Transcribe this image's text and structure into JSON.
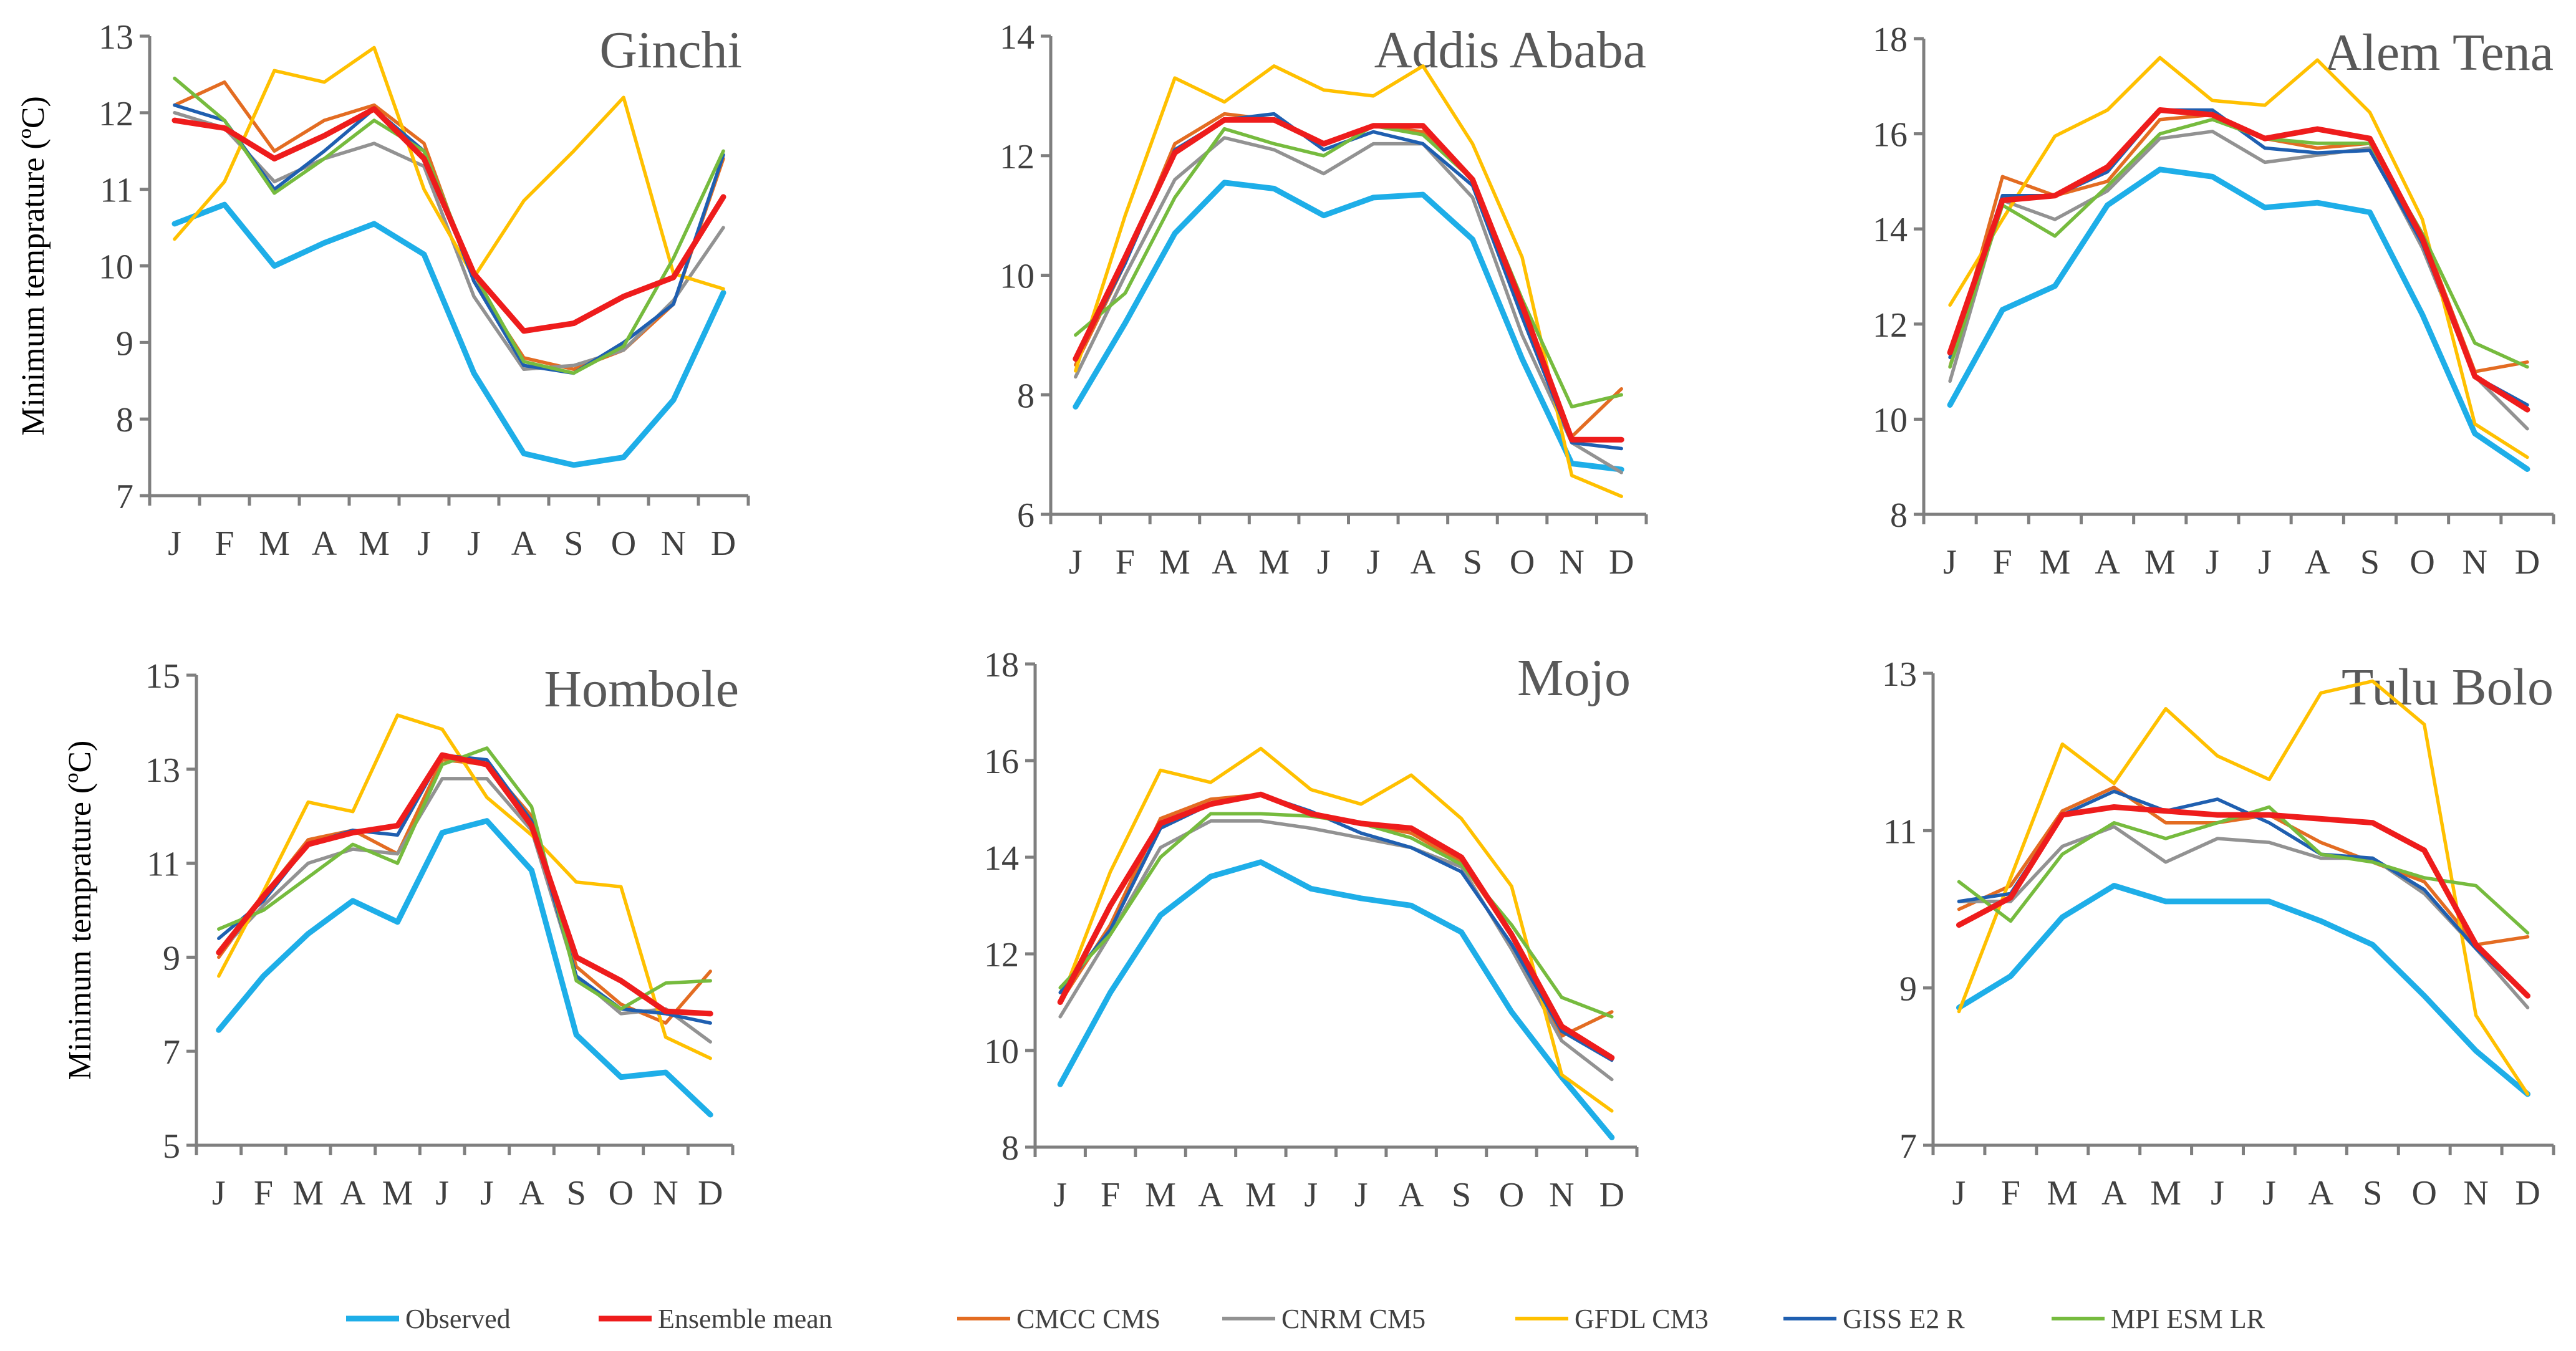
{
  "colors": {
    "Observed": "#1eaee8",
    "Ensemble mean": "#ee1c1c",
    "CMCC CMS": "#e36c22",
    "CNRM CM5": "#929292",
    "GFDL CM3": "#ffc000",
    "GISS E2 R": "#1f5fb0",
    "MPI ESM LR": "#76bb3e"
  },
  "legend": [
    "Observed",
    "Ensemble mean",
    "CMCC CMS",
    "CNRM CM5",
    "GFDL CM3",
    "GISS E2 R",
    "MPI ESM LR"
  ],
  "chart_data": [
    {
      "type": "line",
      "title": "Ginchi",
      "ylabel": "Minimum temprature (ºC)",
      "categories": [
        "J",
        "F",
        "M",
        "A",
        "M",
        "J",
        "J",
        "A",
        "S",
        "O",
        "N",
        "D"
      ],
      "ylim": [
        7,
        13
      ],
      "yticks": [
        "7",
        "8",
        "9",
        "10",
        "11",
        "12",
        "13"
      ],
      "series": [
        {
          "name": "Observed",
          "values": [
            10.55,
            10.8,
            10.0,
            10.3,
            10.55,
            10.15,
            8.6,
            7.55,
            7.4,
            7.5,
            8.25,
            9.65
          ]
        },
        {
          "name": "CMCC CMS",
          "values": [
            12.1,
            12.4,
            11.5,
            11.9,
            12.1,
            11.6,
            9.8,
            8.8,
            8.65,
            8.9,
            9.5,
            11.4
          ]
        },
        {
          "name": "CNRM CM5",
          "values": [
            12.0,
            11.8,
            11.1,
            11.4,
            11.6,
            11.3,
            9.6,
            8.65,
            8.7,
            8.9,
            9.55,
            10.5
          ]
        },
        {
          "name": "GFDL CM3",
          "values": [
            10.35,
            11.1,
            12.55,
            12.4,
            12.85,
            11.0,
            9.85,
            10.85,
            11.5,
            12.2,
            9.9,
            9.7
          ]
        },
        {
          "name": "GISS E2 R",
          "values": [
            12.1,
            11.9,
            11.0,
            11.5,
            12.05,
            11.5,
            9.8,
            8.7,
            8.6,
            9.0,
            9.5,
            11.45
          ]
        },
        {
          "name": "MPI ESM LR",
          "values": [
            12.45,
            11.9,
            10.95,
            11.4,
            11.9,
            11.5,
            9.9,
            8.75,
            8.6,
            8.95,
            10.1,
            11.5
          ]
        },
        {
          "name": "Ensemble mean",
          "values": [
            11.9,
            11.8,
            11.4,
            11.7,
            12.05,
            11.4,
            9.9,
            9.15,
            9.25,
            9.6,
            9.85,
            10.9
          ]
        }
      ]
    },
    {
      "type": "line",
      "title": "Addis Ababa",
      "ylabel": "",
      "categories": [
        "J",
        "F",
        "M",
        "A",
        "M",
        "J",
        "J",
        "A",
        "S",
        "O",
        "N",
        "D"
      ],
      "ylim": [
        6,
        14
      ],
      "yticks": [
        "6",
        "8",
        "10",
        "12",
        "14"
      ],
      "series": [
        {
          "name": "Observed",
          "values": [
            7.8,
            9.2,
            10.7,
            11.55,
            11.45,
            11.0,
            11.3,
            11.35,
            10.6,
            8.6,
            6.85,
            6.75
          ]
        },
        {
          "name": "CMCC CMS",
          "values": [
            8.5,
            10.2,
            12.2,
            12.7,
            12.6,
            12.2,
            12.5,
            12.4,
            11.6,
            9.5,
            7.3,
            8.1
          ]
        },
        {
          "name": "CNRM CM5",
          "values": [
            8.3,
            10.0,
            11.6,
            12.3,
            12.1,
            11.7,
            12.2,
            12.2,
            11.3,
            9.0,
            7.2,
            6.7
          ]
        },
        {
          "name": "GFDL CM3",
          "values": [
            8.4,
            11.0,
            13.3,
            12.9,
            13.5,
            13.1,
            13.0,
            13.5,
            12.2,
            10.3,
            6.65,
            6.3
          ]
        },
        {
          "name": "GISS E2 R",
          "values": [
            8.6,
            10.2,
            12.1,
            12.6,
            12.7,
            12.1,
            12.4,
            12.2,
            11.5,
            9.3,
            7.2,
            7.1
          ]
        },
        {
          "name": "MPI ESM LR",
          "values": [
            9.0,
            9.7,
            11.3,
            12.45,
            12.2,
            12.0,
            12.5,
            12.35,
            11.6,
            9.6,
            7.8,
            8.0
          ]
        },
        {
          "name": "Ensemble mean",
          "values": [
            8.6,
            10.3,
            12.05,
            12.6,
            12.6,
            12.2,
            12.5,
            12.5,
            11.6,
            9.5,
            7.25,
            7.25
          ]
        }
      ]
    },
    {
      "type": "line",
      "title": "Alem Tena",
      "ylabel": "",
      "categories": [
        "J",
        "F",
        "M",
        "A",
        "M",
        "J",
        "J",
        "A",
        "S",
        "O",
        "N",
        "D"
      ],
      "ylim": [
        8,
        18
      ],
      "yticks": [
        "8",
        "10",
        "12",
        "14",
        "16",
        "18"
      ],
      "series": [
        {
          "name": "Observed",
          "values": [
            10.3,
            12.3,
            12.8,
            14.5,
            15.25,
            15.1,
            14.45,
            14.55,
            14.35,
            12.2,
            9.7,
            8.95
          ]
        },
        {
          "name": "CMCC CMS",
          "values": [
            11.1,
            15.1,
            14.7,
            15.0,
            16.3,
            16.4,
            15.9,
            15.7,
            15.8,
            13.9,
            11.0,
            11.2
          ]
        },
        {
          "name": "CNRM CM5",
          "values": [
            10.8,
            14.6,
            14.2,
            14.8,
            15.9,
            16.05,
            15.4,
            15.55,
            15.7,
            13.6,
            10.9,
            9.8
          ]
        },
        {
          "name": "GFDL CM3",
          "values": [
            12.4,
            14.2,
            15.95,
            16.5,
            17.6,
            16.7,
            16.6,
            17.55,
            16.45,
            14.2,
            9.9,
            9.2
          ]
        },
        {
          "name": "GISS E2 R",
          "values": [
            11.3,
            14.7,
            14.7,
            15.2,
            16.5,
            16.5,
            15.7,
            15.6,
            15.65,
            13.7,
            10.9,
            10.3
          ]
        },
        {
          "name": "MPI ESM LR",
          "values": [
            11.1,
            14.5,
            13.85,
            14.9,
            16.0,
            16.3,
            15.9,
            15.8,
            15.8,
            13.9,
            11.6,
            11.1
          ]
        },
        {
          "name": "Ensemble mean",
          "values": [
            11.4,
            14.6,
            14.7,
            15.3,
            16.5,
            16.4,
            15.9,
            16.1,
            15.9,
            13.8,
            10.9,
            10.2
          ]
        }
      ]
    },
    {
      "type": "line",
      "title": "Hombole",
      "ylabel": "Minimum temprature (ºC)",
      "categories": [
        "J",
        "F",
        "M",
        "A",
        "M",
        "J",
        "J",
        "A",
        "S",
        "O",
        "N",
        "D"
      ],
      "ylim": [
        5,
        15
      ],
      "yticks": [
        "5",
        "7",
        "9",
        "11",
        "13",
        "15"
      ],
      "series": [
        {
          "name": "Observed",
          "values": [
            7.45,
            8.6,
            9.5,
            10.2,
            9.75,
            11.65,
            11.9,
            10.85,
            7.35,
            6.45,
            6.55,
            5.65
          ]
        },
        {
          "name": "CMCC CMS",
          "values": [
            9.0,
            10.3,
            11.5,
            11.7,
            11.2,
            13.2,
            13.1,
            12.0,
            8.8,
            8.0,
            7.6,
            8.7
          ]
        },
        {
          "name": "CNRM CM5",
          "values": [
            9.1,
            10.1,
            11.0,
            11.3,
            11.2,
            12.8,
            12.8,
            11.7,
            8.6,
            7.8,
            7.9,
            7.2
          ]
        },
        {
          "name": "GFDL CM3",
          "values": [
            8.6,
            10.4,
            12.3,
            12.1,
            14.15,
            13.85,
            12.4,
            11.6,
            10.6,
            10.5,
            7.3,
            6.85
          ]
        },
        {
          "name": "GISS E2 R",
          "values": [
            9.4,
            10.2,
            11.4,
            11.7,
            11.6,
            13.3,
            13.2,
            11.9,
            8.6,
            7.9,
            7.8,
            7.6
          ]
        },
        {
          "name": "MPI ESM LR",
          "values": [
            9.6,
            10.0,
            10.7,
            11.4,
            11.0,
            13.1,
            13.45,
            12.2,
            8.5,
            7.9,
            8.45,
            8.5
          ]
        },
        {
          "name": "Ensemble mean",
          "values": [
            9.1,
            10.3,
            11.4,
            11.65,
            11.8,
            13.3,
            13.1,
            11.8,
            9.0,
            8.5,
            7.85,
            7.8
          ]
        }
      ]
    },
    {
      "type": "line",
      "title": "Mojo",
      "ylabel": "",
      "categories": [
        "J",
        "F",
        "M",
        "A",
        "M",
        "J",
        "J",
        "A",
        "S",
        "O",
        "N",
        "D"
      ],
      "ylim": [
        8,
        18
      ],
      "yticks": [
        "8",
        "10",
        "12",
        "14",
        "16",
        "18"
      ],
      "series": [
        {
          "name": "Observed",
          "values": [
            9.3,
            11.2,
            12.8,
            13.6,
            13.9,
            13.35,
            13.15,
            13.0,
            12.45,
            10.8,
            9.45,
            8.2
          ]
        },
        {
          "name": "CMCC CMS",
          "values": [
            11.0,
            12.6,
            14.8,
            15.2,
            15.3,
            14.9,
            14.7,
            14.5,
            13.9,
            12.4,
            10.3,
            10.8
          ]
        },
        {
          "name": "CNRM CM5",
          "values": [
            10.7,
            12.4,
            14.2,
            14.75,
            14.75,
            14.6,
            14.4,
            14.2,
            13.8,
            12.1,
            10.2,
            9.4
          ]
        },
        {
          "name": "GFDL CM3",
          "values": [
            11.0,
            13.7,
            15.8,
            15.55,
            16.25,
            15.4,
            15.1,
            15.7,
            14.8,
            13.4,
            9.5,
            8.75
          ]
        },
        {
          "name": "GISS E2 R",
          "values": [
            11.2,
            12.5,
            14.6,
            15.1,
            15.3,
            14.95,
            14.5,
            14.2,
            13.7,
            12.2,
            10.4,
            9.8
          ]
        },
        {
          "name": "MPI ESM LR",
          "values": [
            11.3,
            12.4,
            14.0,
            14.9,
            14.9,
            14.85,
            14.7,
            14.4,
            13.85,
            12.6,
            11.1,
            10.7
          ]
        },
        {
          "name": "Ensemble mean",
          "values": [
            11.0,
            13.0,
            14.7,
            15.1,
            15.3,
            14.9,
            14.7,
            14.6,
            14.0,
            12.4,
            10.5,
            9.85
          ]
        }
      ]
    },
    {
      "type": "line",
      "title": "Tulu Bolo",
      "ylabel": "",
      "categories": [
        "J",
        "F",
        "M",
        "A",
        "M",
        "J",
        "J",
        "A",
        "S",
        "O",
        "N",
        "D"
      ],
      "ylim": [
        7,
        13
      ],
      "yticks": [
        "7",
        "9",
        "11",
        "13"
      ],
      "series": [
        {
          "name": "Observed",
          "values": [
            8.75,
            9.15,
            9.9,
            10.3,
            10.1,
            10.1,
            10.1,
            9.85,
            9.55,
            8.9,
            8.2,
            7.65
          ]
        },
        {
          "name": "CMCC CMS",
          "values": [
            10.0,
            10.3,
            11.25,
            11.55,
            11.1,
            11.1,
            11.2,
            10.85,
            10.6,
            10.35,
            9.55,
            9.65
          ]
        },
        {
          "name": "CNRM CM5",
          "values": [
            10.1,
            10.1,
            10.8,
            11.05,
            10.6,
            10.9,
            10.85,
            10.65,
            10.65,
            10.2,
            9.5,
            8.75
          ]
        },
        {
          "name": "GFDL CM3",
          "values": [
            8.7,
            10.4,
            12.1,
            11.6,
            12.55,
            11.95,
            11.65,
            12.75,
            12.9,
            12.35,
            8.65,
            7.65
          ]
        },
        {
          "name": "GISS E2 R",
          "values": [
            10.1,
            10.2,
            11.2,
            11.5,
            11.25,
            11.4,
            11.1,
            10.7,
            10.65,
            10.25,
            9.5,
            8.9
          ]
        },
        {
          "name": "MPI ESM LR",
          "values": [
            10.35,
            9.85,
            10.7,
            11.1,
            10.9,
            11.1,
            11.3,
            10.7,
            10.6,
            10.4,
            10.3,
            9.7
          ]
        },
        {
          "name": "Ensemble mean",
          "values": [
            9.8,
            10.15,
            11.2,
            11.3,
            11.25,
            11.2,
            11.2,
            11.15,
            11.1,
            10.75,
            9.55,
            8.9
          ]
        }
      ]
    }
  ]
}
